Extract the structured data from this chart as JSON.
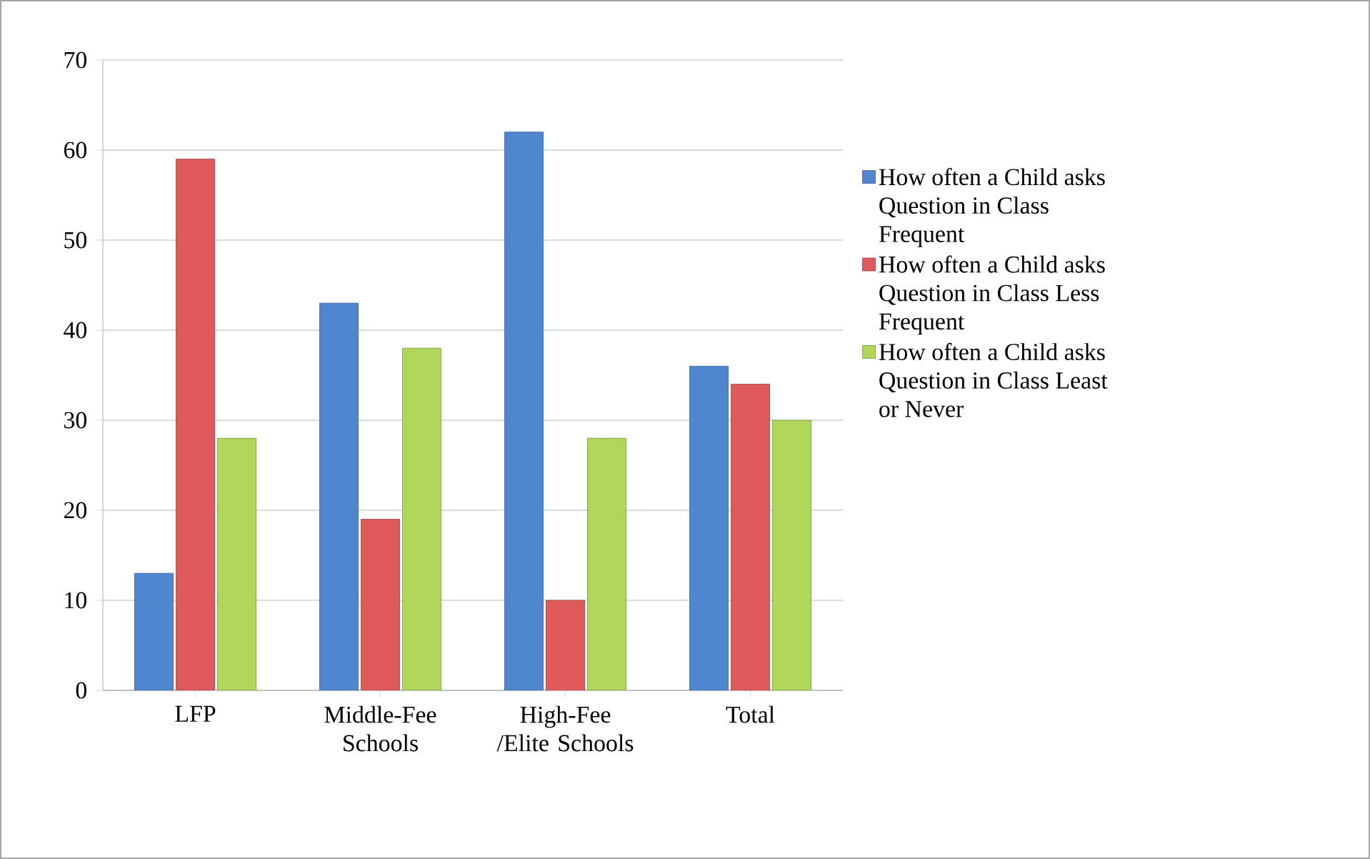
{
  "chart_data": {
    "type": "bar",
    "categories": [
      "LFP",
      "Middle-Fee Schools",
      "High-Fee /Elite Schools",
      "Total"
    ],
    "series": [
      {
        "name": "How often a Child asks Question in Class Frequent",
        "color": "#4f86d0",
        "values": [
          13,
          43,
          62,
          36
        ]
      },
      {
        "name": "How often a Child asks Question in Class Less Frequent",
        "color": "#e05a5c",
        "values": [
          59,
          19,
          10,
          34
        ]
      },
      {
        "name": "How often a Child asks Question in Class Least or Never",
        "color": "#b0d65a",
        "values": [
          28,
          38,
          28,
          30
        ]
      }
    ],
    "ylim": [
      0,
      70
    ],
    "yticks": [
      0,
      10,
      20,
      30,
      40,
      50,
      60,
      70
    ],
    "grid": "y",
    "legend": "right"
  }
}
